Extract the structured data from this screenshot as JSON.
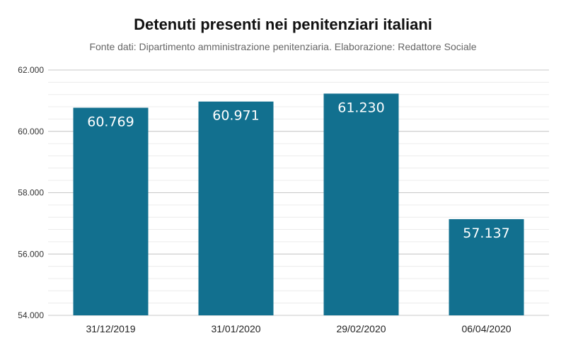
{
  "chart_data": {
    "type": "bar",
    "title": "Detenuti presenti nei penitenziari italiani",
    "subtitle": "Fonte dati: Dipartimento amministrazione penitenziaria. Elaborazione: Redattore Sociale",
    "categories": [
      "31/12/2019",
      "31/01/2020",
      "29/02/2020",
      "06/04/2020"
    ],
    "values": [
      60769,
      60971,
      61230,
      57137
    ],
    "value_labels": [
      "60.769",
      "60.971",
      "61.230",
      "57.137"
    ],
    "ylim": [
      54000,
      62000
    ],
    "yticks": [
      54000,
      56000,
      58000,
      60000,
      62000
    ],
    "ytick_labels": [
      "54.000",
      "56.000",
      "58.000",
      "60.000",
      "62.000"
    ],
    "minor_step": 400,
    "grid": true,
    "bar_color": "#12708f",
    "legend": "none"
  }
}
